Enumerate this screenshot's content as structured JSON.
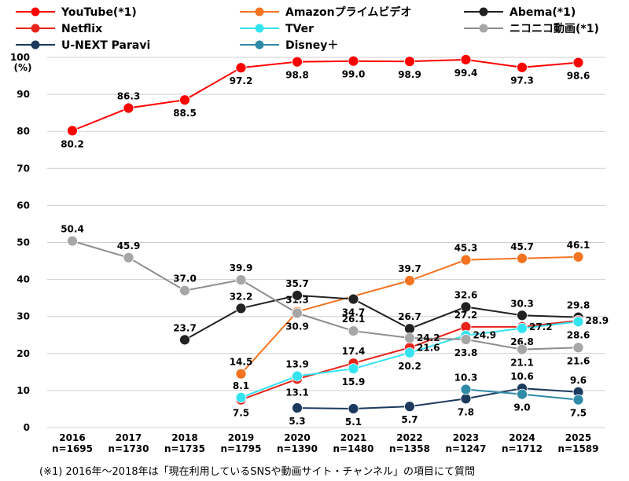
{
  "chart_data": {
    "type": "line",
    "y_unit_label": "(%)",
    "ylim": [
      0,
      100
    ],
    "yticks": [
      0,
      10,
      20,
      30,
      40,
      50,
      60,
      70,
      80,
      90,
      100
    ],
    "categories": [
      {
        "year": "2016",
        "n": "n=1695"
      },
      {
        "year": "2017",
        "n": "n=1730"
      },
      {
        "year": "2018",
        "n": "n=1735"
      },
      {
        "year": "2019",
        "n": "n=1795"
      },
      {
        "year": "2020",
        "n": "n=1390"
      },
      {
        "year": "2021",
        "n": "n=1480"
      },
      {
        "year": "2022",
        "n": "n=1358"
      },
      {
        "year": "2023",
        "n": "n=1247"
      },
      {
        "year": "2024",
        "n": "n=1712"
      },
      {
        "year": "2025",
        "n": "n=1589"
      }
    ],
    "series": [
      {
        "name": "YouTube(*1)",
        "color": "#ff0000",
        "marker_color": "#ff0000",
        "values": [
          80.2,
          86.3,
          88.5,
          97.2,
          98.8,
          99.0,
          98.9,
          99.4,
          97.3,
          98.6
        ],
        "label_pos": [
          "below",
          "above",
          "below",
          "below",
          "below",
          "below",
          "below",
          "below",
          "below",
          "below"
        ]
      },
      {
        "name": "Amazonプライムビデオ",
        "color": "#f47320",
        "marker_color": "#f47320",
        "values": [
          null,
          null,
          null,
          14.5,
          31.3,
          null,
          39.7,
          45.3,
          45.7,
          46.1
        ],
        "label_pos": [
          null,
          null,
          null,
          "above",
          "above",
          null,
          "above",
          "above",
          "above",
          "above"
        ]
      },
      {
        "name": "Abema(*1)",
        "color": "#222222",
        "marker_color": "#222222",
        "values": [
          null,
          null,
          23.7,
          32.2,
          35.7,
          34.7,
          26.7,
          32.6,
          30.3,
          29.8
        ],
        "label_pos": [
          null,
          null,
          "above",
          "above",
          "above",
          "below",
          "above",
          "above",
          "above",
          "above"
        ]
      },
      {
        "name": "Netflix",
        "color": "#e8231b",
        "marker_color": "#e8231b",
        "values": [
          null,
          null,
          null,
          7.5,
          13.1,
          17.4,
          21.6,
          27.2,
          27.2,
          28.9
        ],
        "label_pos": [
          null,
          null,
          null,
          "below",
          "below",
          "above",
          "right",
          "above",
          "right",
          "right"
        ]
      },
      {
        "name": "TVer",
        "color": "#33e3f0",
        "marker_color": "#33e3f0",
        "values": [
          null,
          null,
          null,
          8.1,
          13.9,
          15.9,
          20.2,
          24.9,
          26.8,
          28.6
        ],
        "label_pos": [
          null,
          null,
          null,
          "above",
          "above",
          "below",
          "below",
          "right",
          "below",
          "below"
        ]
      },
      {
        "name": "ニコニコ動画(*1)",
        "color": "#8c8c8c",
        "marker_color": "#a6a6a6",
        "values": [
          50.4,
          45.9,
          37.0,
          39.9,
          30.9,
          26.1,
          24.2,
          23.8,
          21.1,
          21.6
        ],
        "label_pos": [
          "above",
          "above",
          "above",
          "above",
          "below",
          "above",
          "right",
          "below",
          "below",
          "below"
        ]
      },
      {
        "name": "U-NEXT Paravi",
        "color": "#1c3a5e",
        "marker_color": "#1c3a5e",
        "values": [
          null,
          null,
          null,
          null,
          5.3,
          5.1,
          5.7,
          7.8,
          10.6,
          9.6
        ],
        "label_pos": [
          null,
          null,
          null,
          null,
          "below",
          "below",
          "below",
          "below",
          "above",
          "above"
        ]
      },
      {
        "name": "Disney＋",
        "color": "#2f8aa8",
        "marker_color": "#2f8aa8",
        "values": [
          null,
          null,
          null,
          null,
          null,
          null,
          null,
          10.3,
          9.0,
          7.5
        ],
        "label_pos": [
          null,
          null,
          null,
          null,
          null,
          null,
          null,
          "above",
          "below",
          "below"
        ]
      }
    ]
  },
  "footnote": "(※1) 2016年～2018年は「現在利用しているSNSや動画サイト・チャンネル」の項目にて質問"
}
